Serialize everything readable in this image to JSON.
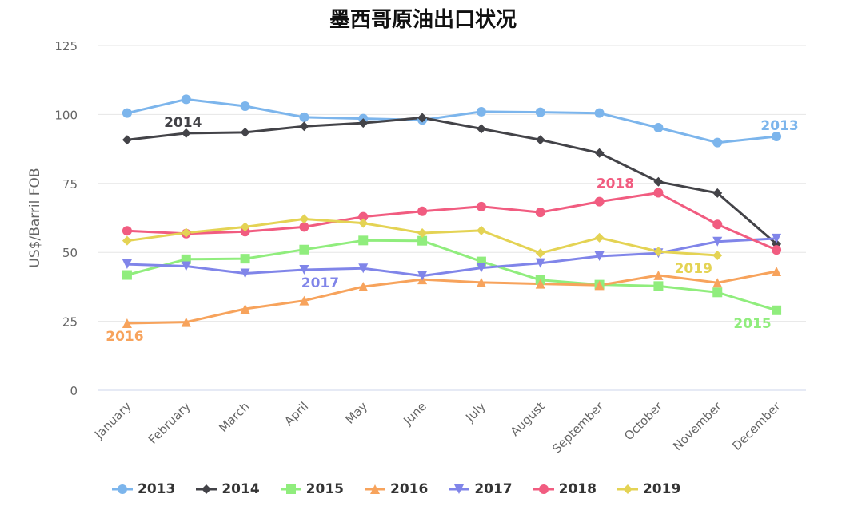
{
  "chart_data": {
    "type": "line",
    "title": "墨西哥原油出口状况",
    "ylabel": "US$/Barril FOB",
    "xlabel": "",
    "ylim": [
      0,
      125
    ],
    "yticks": [
      0,
      25,
      50,
      75,
      100,
      125
    ],
    "grid": true,
    "legend_position": "bottom",
    "categories": [
      "January",
      "February",
      "March",
      "April",
      "May",
      "June",
      "July",
      "August",
      "September",
      "October",
      "November",
      "December"
    ],
    "series": [
      {
        "name": "2013",
        "color": "#7cb5ec",
        "marker": "circle",
        "values": [
          100.5,
          105.5,
          103,
          99,
          98.5,
          98,
          101,
          100.8,
          100.5,
          95.2,
          89.8,
          92
        ]
      },
      {
        "name": "2014",
        "color": "#434348",
        "marker": "diamond",
        "values": [
          90.8,
          93.2,
          93.5,
          95.7,
          96.9,
          98.8,
          94.8,
          90.8,
          86,
          75.6,
          71.5,
          53
        ]
      },
      {
        "name": "2015",
        "color": "#90ed7d",
        "marker": "square",
        "values": [
          41.8,
          47.5,
          47.7,
          51,
          54.3,
          54.2,
          46.7,
          40,
          38.3,
          37.8,
          35.5,
          29
        ]
      },
      {
        "name": "2016",
        "color": "#f7a35c",
        "marker": "triangle",
        "values": [
          24.3,
          24.7,
          29.5,
          32.5,
          37.6,
          40.2,
          39.1,
          38.6,
          38.1,
          41.7,
          39,
          43.1
        ]
      },
      {
        "name": "2017",
        "color": "#8085e9",
        "marker": "triangle-down",
        "values": [
          45.7,
          45,
          42.4,
          43.7,
          44.2,
          41.5,
          44.4,
          46.1,
          48.6,
          49.7,
          53.9,
          55
        ]
      },
      {
        "name": "2018",
        "color": "#f15c80",
        "marker": "circle",
        "values": [
          57.8,
          56.8,
          57.5,
          59.2,
          62.9,
          64.9,
          66.6,
          64.5,
          68.4,
          71.6,
          60.1,
          50.9
        ]
      },
      {
        "name": "2019",
        "color": "#e4d354",
        "marker": "diamond",
        "values": [
          54.2,
          57.1,
          59.2,
          62.1,
          60.6,
          57,
          57.9,
          49.7,
          55.3,
          50.3,
          48.9,
          null
        ]
      }
    ],
    "annotations": [
      {
        "text": "2014",
        "series": "2014",
        "color": "#434348"
      },
      {
        "text": "2013",
        "series": "2013",
        "color": "#7cb5ec"
      },
      {
        "text": "2018",
        "series": "2018",
        "color": "#f15c80"
      },
      {
        "text": "2017",
        "series": "2017",
        "color": "#8085e9"
      },
      {
        "text": "2019",
        "series": "2019",
        "color": "#e4d354"
      },
      {
        "text": "2016",
        "series": "2016",
        "color": "#f7a35c"
      },
      {
        "text": "2015",
        "series": "2015",
        "color": "#90ed7d"
      }
    ]
  }
}
